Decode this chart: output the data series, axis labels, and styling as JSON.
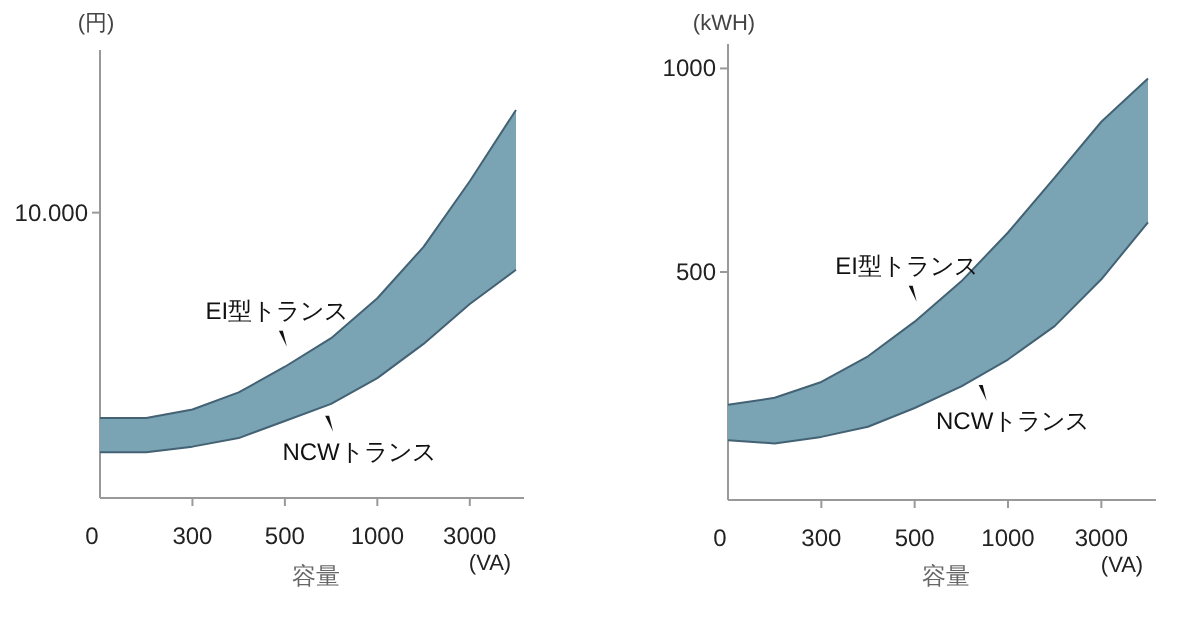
{
  "chart_data": [
    {
      "type": "area",
      "ylabel": "(円)",
      "xlabel": "容量",
      "annotations": [
        "(VA)"
      ],
      "categories": [
        "0",
        null,
        "300",
        null,
        "500",
        null,
        "1000",
        null,
        "3000",
        null
      ],
      "ylim": [
        0,
        15700
      ],
      "yticks": [
        {
          "value": 10000,
          "label": "10.000"
        }
      ],
      "series": [
        {
          "name": "EI型トランス",
          "color": "#7aa3b3",
          "values": [
            2800,
            2800,
            3100,
            3700,
            4600,
            5600,
            7000,
            8800,
            11100,
            13600
          ]
        },
        {
          "name": "NCWトランス",
          "type": "line",
          "color": "#436274",
          "values": [
            1600,
            1600,
            1800,
            2100,
            2700,
            3300,
            4200,
            5400,
            6800,
            8000
          ]
        }
      ]
    },
    {
      "type": "area",
      "ylabel": "(kWH)",
      "xlabel": "容量",
      "annotations": [
        "(VA)"
      ],
      "categories": [
        "0",
        null,
        "300",
        null,
        "500",
        null,
        "1000",
        null,
        "3000",
        null
      ],
      "ylim": [
        -60,
        1060
      ],
      "yticks": [
        500,
        1000
      ],
      "series": [
        {
          "name": "EI型トランス",
          "color": "#7aa3b3",
          "values": [
            174,
            191,
            230,
            293,
            378,
            477,
            597,
            732,
            869,
            975
          ]
        },
        {
          "name": "NCWトランス",
          "type": "line",
          "color": "#436274",
          "values": [
            87,
            79,
            95,
            120,
            166,
            219,
            285,
            367,
            482,
            622
          ]
        }
      ]
    }
  ]
}
